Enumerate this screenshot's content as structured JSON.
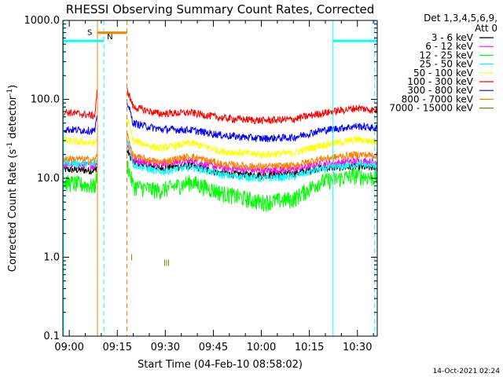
{
  "chart_data": {
    "type": "line",
    "title": "RHESSI Observing Summary Count Rates, Corrected",
    "xlabel": "Start Time (04-Feb-10 08:58:02)",
    "ylabel_main": "Corrected Count Rate (s",
    "ylabel_sup1": "-1",
    "ylabel_mid": " detector",
    "ylabel_sup2": "-1",
    "ylabel_end": ")",
    "y_scale": "log",
    "ylim": [
      0.1,
      1000
    ],
    "xlim_minutes": [
      0,
      98.2
    ],
    "x_ticks": [
      {
        "label": "09:00",
        "t": 2
      },
      {
        "label": "09:15",
        "t": 17
      },
      {
        "label": "09:30",
        "t": 32
      },
      {
        "label": "09:45",
        "t": 47
      },
      {
        "label": "10:00",
        "t": 62
      },
      {
        "label": "10:15",
        "t": 77
      },
      {
        "label": "10:30",
        "t": 92
      }
    ],
    "y_ticks": [
      {
        "label": "0.1",
        "v": 0.1
      },
      {
        "label": "1.0",
        "v": 1
      },
      {
        "label": "10.0",
        "v": 10
      },
      {
        "label": "100.0",
        "v": 100
      },
      {
        "label": "1000.0",
        "v": 1000
      }
    ],
    "legend_header_1": "Det 1,3,4,5,6,9,",
    "legend_header_2": "Att 0",
    "legend_position": "top-right, outside plot",
    "gaps_minutes": [
      [
        10.8,
        20.0
      ]
    ],
    "series": [
      {
        "name": "3 - 6 keV",
        "color": "#000000",
        "keyframes": [
          [
            0,
            13
          ],
          [
            10,
            12.5
          ],
          [
            10.6,
            14
          ],
          [
            20.2,
            22
          ],
          [
            22,
            16
          ],
          [
            30,
            13.5
          ],
          [
            40,
            14.5
          ],
          [
            50,
            11.5
          ],
          [
            62,
            11
          ],
          [
            72,
            11.5
          ],
          [
            80,
            13.5
          ],
          [
            92,
            14
          ],
          [
            98.2,
            13.5
          ]
        ]
      },
      {
        "name": "6 - 12 keV",
        "color": "#ff00ff",
        "keyframes": [
          [
            0,
            15
          ],
          [
            10,
            14.5
          ],
          [
            10.6,
            16
          ],
          [
            20.2,
            28
          ],
          [
            22,
            17
          ],
          [
            30,
            15.5
          ],
          [
            40,
            16.5
          ],
          [
            50,
            13.5
          ],
          [
            62,
            12.5
          ],
          [
            72,
            13
          ],
          [
            80,
            15
          ],
          [
            92,
            16.5
          ],
          [
            98.2,
            16
          ]
        ]
      },
      {
        "name": "12 - 25 keV",
        "color": "#00ff00",
        "keyframes": [
          [
            0,
            9
          ],
          [
            10,
            8
          ],
          [
            10.6,
            11
          ],
          [
            20.2,
            15
          ],
          [
            22,
            8
          ],
          [
            30,
            7
          ],
          [
            40,
            9
          ],
          [
            50,
            6.5
          ],
          [
            62,
            5
          ],
          [
            72,
            5.5
          ],
          [
            80,
            9
          ],
          [
            92,
            11
          ],
          [
            98.2,
            10
          ]
        ]
      },
      {
        "name": "25 - 50 keV",
        "color": "#00ffff",
        "keyframes": [
          [
            0,
            16
          ],
          [
            10,
            15
          ],
          [
            10.6,
            17
          ],
          [
            20.2,
            30
          ],
          [
            22,
            15
          ],
          [
            30,
            12
          ],
          [
            40,
            14
          ],
          [
            50,
            11
          ],
          [
            62,
            10
          ],
          [
            72,
            10.5
          ],
          [
            80,
            13
          ],
          [
            92,
            15
          ],
          [
            98.2,
            14.5
          ]
        ]
      },
      {
        "name": "50 - 100 keV",
        "color": "#ffff00",
        "keyframes": [
          [
            0,
            30
          ],
          [
            10,
            28
          ],
          [
            10.6,
            31
          ],
          [
            20.2,
            55
          ],
          [
            22,
            30
          ],
          [
            30,
            24
          ],
          [
            40,
            28
          ],
          [
            50,
            22
          ],
          [
            62,
            20
          ],
          [
            72,
            21
          ],
          [
            80,
            26
          ],
          [
            92,
            31
          ],
          [
            98.2,
            29
          ]
        ]
      },
      {
        "name": "100 - 300 keV",
        "color": "#ff0000",
        "keyframes": [
          [
            0,
            70
          ],
          [
            10,
            62
          ],
          [
            10.6,
            120
          ],
          [
            20.2,
            130
          ],
          [
            22,
            80
          ],
          [
            30,
            66
          ],
          [
            40,
            68
          ],
          [
            50,
            58
          ],
          [
            62,
            54
          ],
          [
            72,
            56
          ],
          [
            80,
            66
          ],
          [
            92,
            78
          ],
          [
            98.2,
            72
          ]
        ]
      },
      {
        "name": "300 - 800 keV",
        "color": "#0000ff",
        "keyframes": [
          [
            0,
            42
          ],
          [
            10,
            40
          ],
          [
            10.6,
            56
          ],
          [
            20.2,
            90
          ],
          [
            22,
            50
          ],
          [
            30,
            42
          ],
          [
            40,
            41
          ],
          [
            50,
            35
          ],
          [
            62,
            32
          ],
          [
            72,
            33
          ],
          [
            80,
            40
          ],
          [
            92,
            46
          ],
          [
            98.2,
            43
          ]
        ]
      },
      {
        "name": "800 - 7000 keV",
        "color": "#ff8000",
        "keyframes": [
          [
            0,
            18
          ],
          [
            10,
            17
          ],
          [
            10.6,
            19
          ],
          [
            20.2,
            35
          ],
          [
            22,
            19
          ],
          [
            30,
            16
          ],
          [
            40,
            19
          ],
          [
            50,
            15
          ],
          [
            62,
            14
          ],
          [
            72,
            14.5
          ],
          [
            80,
            17.5
          ],
          [
            92,
            20
          ],
          [
            98.2,
            19.5
          ]
        ]
      },
      {
        "name": "7000 - 15000 keV",
        "color": "#808000",
        "keyframes": []
      }
    ],
    "saa_bar": {
      "label": "S",
      "color": "#ff8000",
      "t": [
        10.8,
        20.0
      ],
      "y": 700
    },
    "night_bars": [
      {
        "label": "N",
        "color": "#00ffff",
        "t": [
          0,
          12.8
        ],
        "y": 550
      },
      {
        "label": "",
        "color": "#00ffff",
        "t": [
          84.4,
          98.2
        ],
        "y": 550
      }
    ],
    "vlines_orange_solid": [
      10.8
    ],
    "vlines_orange_dashed": [
      20.0
    ],
    "vlines_cyan_solid": [
      0.2,
      84.4
    ],
    "vlines_cyan_dashed": [
      12.8,
      97.4
    ],
    "markers_olive": [
      [
        10.8,
        1.0
      ],
      [
        21.5,
        1.0
      ],
      [
        31.8,
        0.85
      ],
      [
        32.4,
        0.85
      ],
      [
        33.0,
        0.85
      ]
    ]
  },
  "footer": {
    "timestamp": "14-Oct-2021 02:24"
  }
}
